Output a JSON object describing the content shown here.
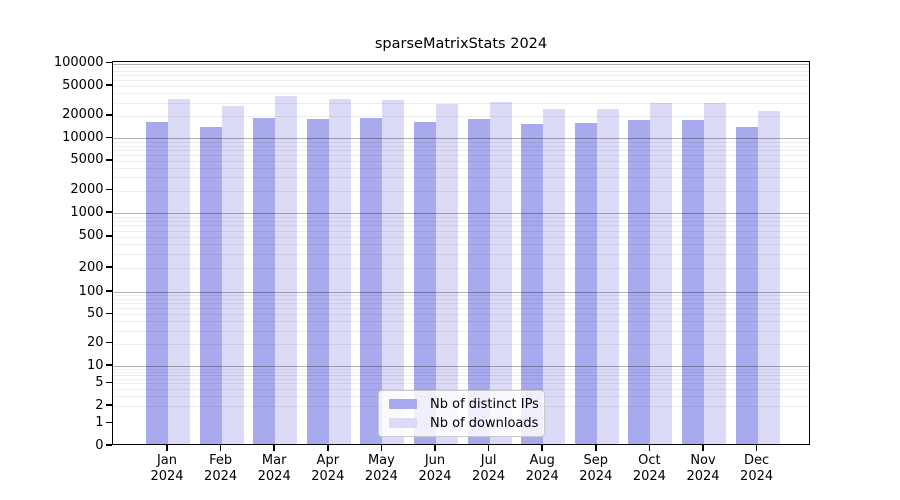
{
  "title": "sparseMatrixStats 2024",
  "colors": {
    "distinct_ips_bar": "#a9a9ee",
    "downloads_bar": "#dbdbf8",
    "grid_minor": "rgba(0,0,0,0.07)",
    "grid_major": "rgba(0,0,0,0.30)",
    "axis": "#000000",
    "legend_border": "#c9c9c9"
  },
  "chart_data": {
    "type": "bar",
    "title": "sparseMatrixStats 2024",
    "categories": [
      "Jan 2024",
      "Feb 2024",
      "Mar 2024",
      "Apr 2024",
      "May 2024",
      "Jun 2024",
      "Jul 2024",
      "Aug 2024",
      "Sep 2024",
      "Oct 2024",
      "Nov 2024",
      "Dec 2024"
    ],
    "series": [
      {
        "name": "Nb of distinct IPs",
        "color": "#a9a9ee",
        "values": [
          15500,
          13200,
          17500,
          16800,
          17500,
          15700,
          16800,
          14700,
          15200,
          16300,
          16300,
          13300
        ]
      },
      {
        "name": "Nb of downloads",
        "color": "#dbdbf8",
        "values": [
          31800,
          25400,
          34600,
          31900,
          30900,
          27100,
          28800,
          22900,
          23300,
          27700,
          28300,
          21500
        ]
      }
    ],
    "xlabel": "",
    "ylabel": "",
    "y_axis": {
      "scale": "log (with 0 baseline)",
      "ticks": [
        0,
        1,
        2,
        5,
        10,
        20,
        50,
        100,
        200,
        500,
        1000,
        2000,
        5000,
        10000,
        20000,
        50000,
        100000
      ],
      "top": 100000,
      "bottom": 0
    },
    "grid": "horizontal minor + major (powers of 10), drawn over bars",
    "legend": {
      "position": "inside bottom-center",
      "entries": [
        "Nb of distinct IPs",
        "Nb of downloads"
      ]
    }
  }
}
